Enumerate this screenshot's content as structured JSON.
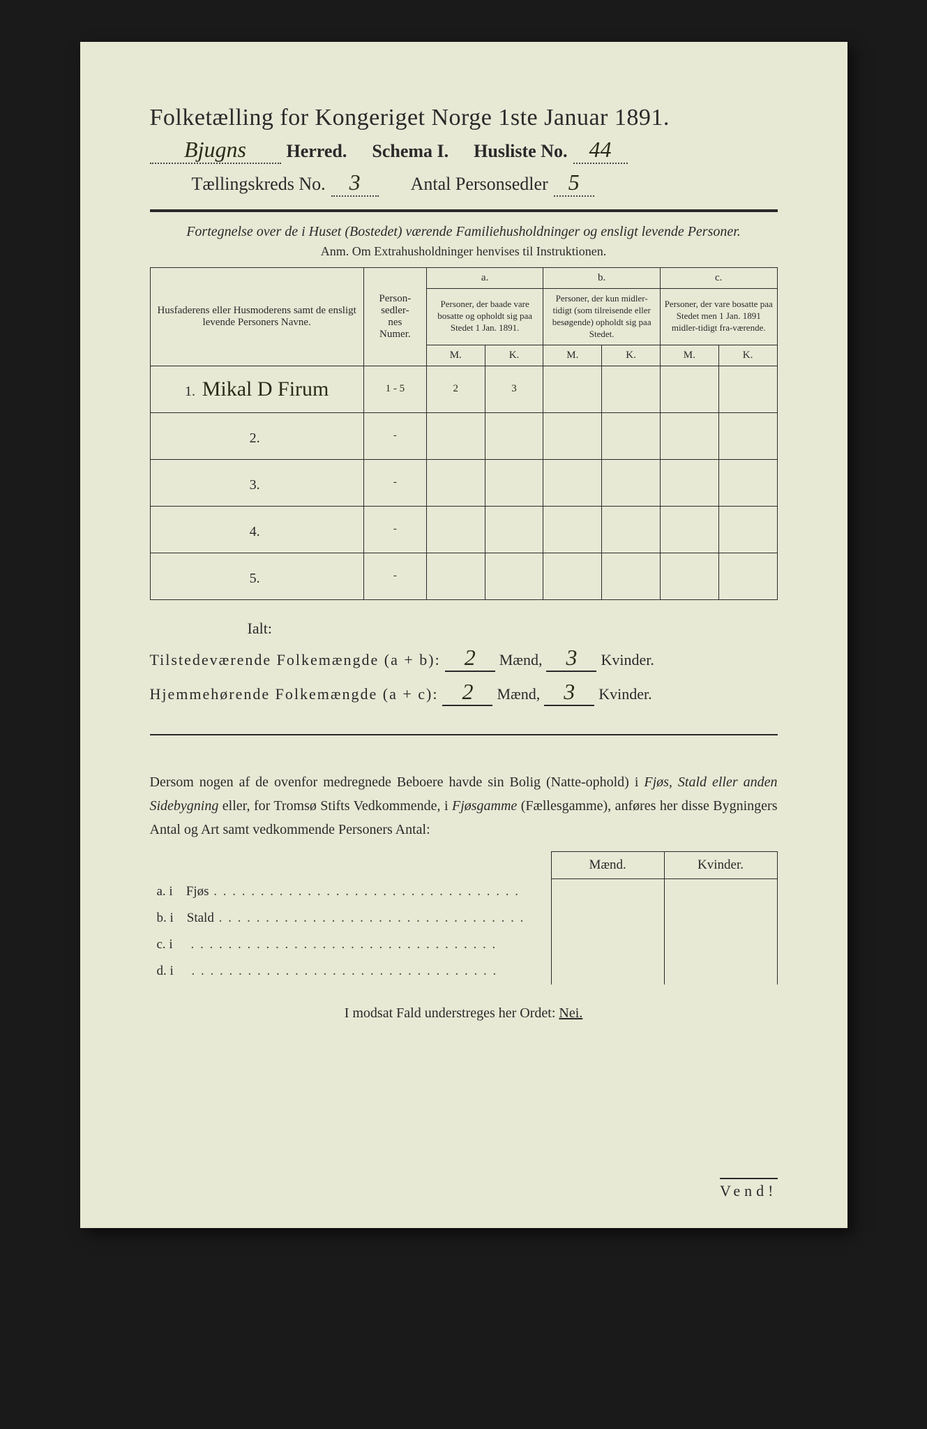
{
  "title": "Folketælling for Kongeriget Norge 1ste Januar 1891.",
  "header": {
    "herred_value": "Bjugns",
    "herred_label": "Herred.",
    "schema_label": "Schema I.",
    "husliste_label": "Husliste No.",
    "husliste_value": "44",
    "kreds_label": "Tællingskreds No.",
    "kreds_value": "3",
    "antal_label": "Antal Personsedler",
    "antal_value": "5"
  },
  "subtitle": "Fortegnelse over de i Huset (Bostedet) værende Familiehusholdninger og ensligt levende Personer.",
  "anm": "Anm.  Om Extrahusholdninger henvises til Instruktionen.",
  "table": {
    "col_name": "Husfaderens eller Husmoderens samt de ensligt levende Personers Navne.",
    "col_num": "Person-\nsedler-\nnes\nNumer.",
    "col_a_top": "a.",
    "col_a": "Personer, der baade vare bosatte og opholdt sig paa Stedet 1 Jan. 1891.",
    "col_b_top": "b.",
    "col_b": "Personer, der kun midler-tidigt (som tilreisende eller besøgende) opholdt sig paa Stedet.",
    "col_c_top": "c.",
    "col_c": "Personer, der vare bosatte paa Stedet men 1 Jan. 1891 midler-tidigt fra-værende.",
    "m": "M.",
    "k": "K.",
    "rows": [
      {
        "n": "1.",
        "name": "Mikal D Firum",
        "num": "1 - 5",
        "am": "2",
        "ak": "3",
        "bm": "",
        "bk": "",
        "cm": "",
        "ck": ""
      },
      {
        "n": "2.",
        "name": "",
        "num": "-",
        "am": "",
        "ak": "",
        "bm": "",
        "bk": "",
        "cm": "",
        "ck": ""
      },
      {
        "n": "3.",
        "name": "",
        "num": "-",
        "am": "",
        "ak": "",
        "bm": "",
        "bk": "",
        "cm": "",
        "ck": ""
      },
      {
        "n": "4.",
        "name": "",
        "num": "-",
        "am": "",
        "ak": "",
        "bm": "",
        "bk": "",
        "cm": "",
        "ck": ""
      },
      {
        "n": "5.",
        "name": "",
        "num": "-",
        "am": "",
        "ak": "",
        "bm": "",
        "bk": "",
        "cm": "",
        "ck": ""
      }
    ]
  },
  "totals": {
    "ialt": "Ialt:",
    "line1_label": "Tilstedeværende Folkemængde (a + b):",
    "line1_m": "2",
    "line1_k": "3",
    "line2_label": "Hjemmehørende Folkemængde (a + c):",
    "line2_m": "2",
    "line2_k": "3",
    "maend": "Mænd,",
    "kvinder": "Kvinder."
  },
  "note": {
    "text1": "Dersom nogen af de ovenfor medregnede Beboere havde sin Bolig (Natte-ophold) i ",
    "it1": "Fjøs, Stald eller anden Sidebygning",
    "text2": " eller, for Tromsø Stifts Vedkommende, i ",
    "it2": "Fjøsgamme",
    "text3": " (Fællesgamme), anføres her disse Bygningers Antal og Art samt vedkommende Personers Antal:"
  },
  "smalltable": {
    "maend": "Mænd.",
    "kvinder": "Kvinder.",
    "rows": [
      {
        "l": "a.  i",
        "t": "Fjøs"
      },
      {
        "l": "b.  i",
        "t": "Stald"
      },
      {
        "l": "c.  i",
        "t": ""
      },
      {
        "l": "d.  i",
        "t": ""
      }
    ]
  },
  "nei": "I modsat Fald understreges her Ordet: ",
  "nei_word": "Nei.",
  "vend": "Vend!"
}
